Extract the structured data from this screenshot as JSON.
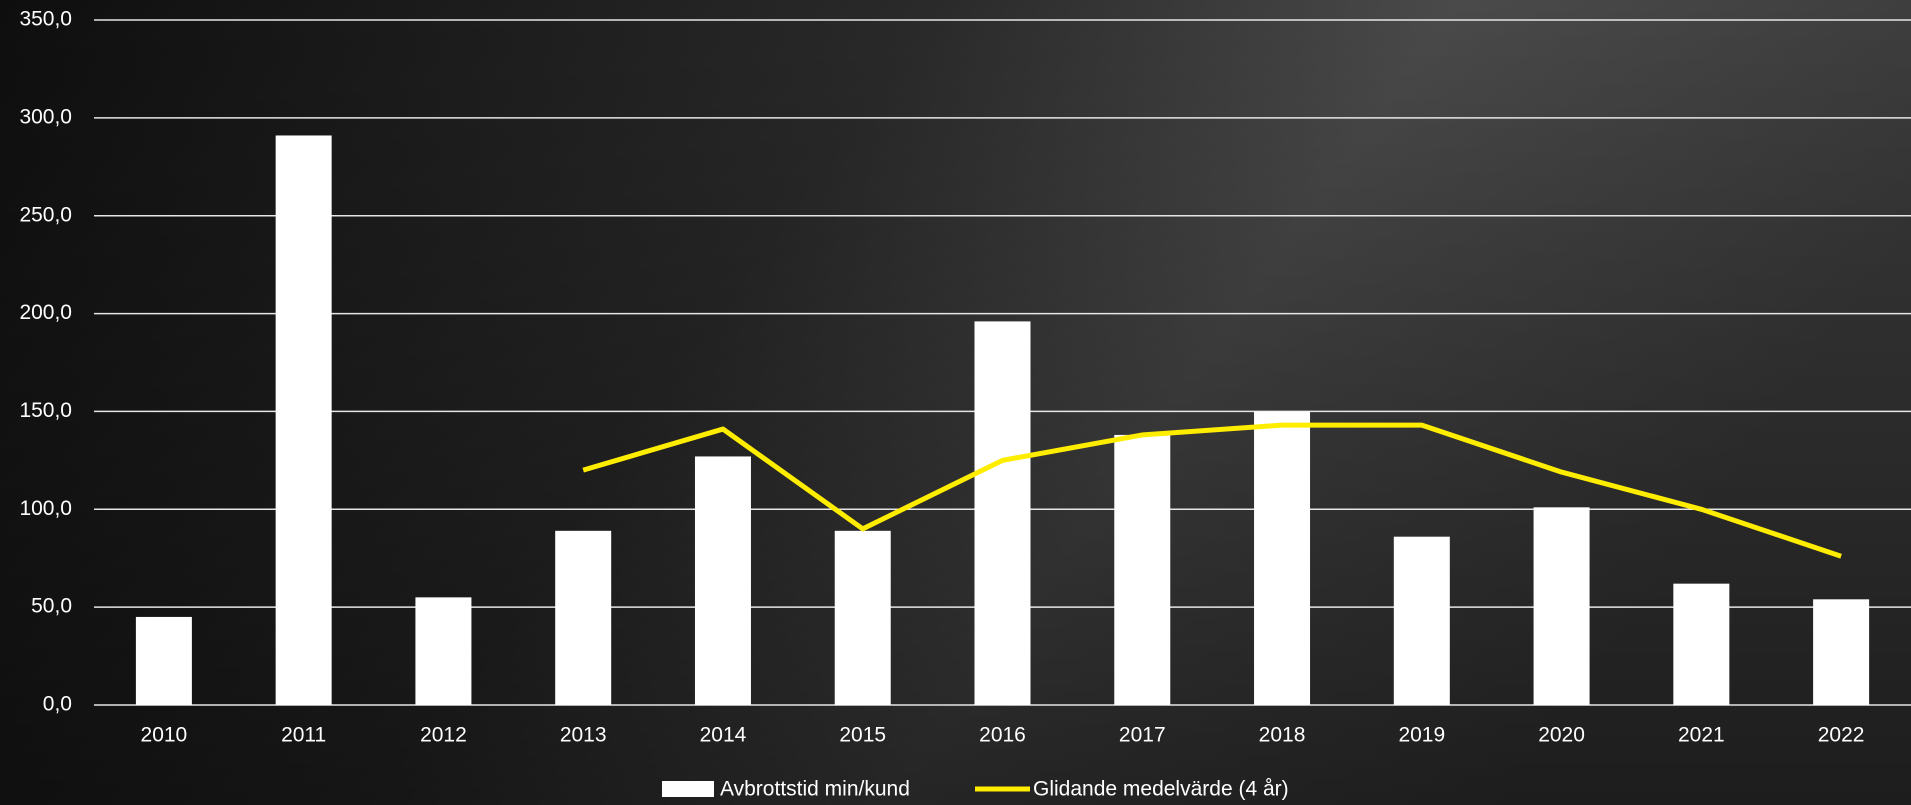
{
  "chart_data": {
    "type": "bar",
    "categories": [
      "2010",
      "2011",
      "2012",
      "2013",
      "2014",
      "2015",
      "2016",
      "2017",
      "2018",
      "2019",
      "2020",
      "2021",
      "2022"
    ],
    "series": [
      {
        "name": "Avbrottstid min/kund",
        "type": "bar",
        "color": "#ffffff",
        "values": [
          45,
          291,
          55,
          89,
          127,
          89,
          196,
          138,
          150,
          86,
          101,
          62,
          54
        ]
      },
      {
        "name": "Glidande medelvärde (4 år)",
        "type": "line",
        "color": "#ffed00",
        "values": [
          null,
          null,
          null,
          120,
          141,
          90,
          125,
          138,
          143,
          143,
          119,
          100,
          76
        ]
      }
    ],
    "ylim": [
      0,
      350
    ],
    "yticks": [
      {
        "value": 0,
        "label": "0,0"
      },
      {
        "value": 50,
        "label": "50,0"
      },
      {
        "value": 100,
        "label": "100,0"
      },
      {
        "value": 150,
        "label": "150,0"
      },
      {
        "value": 200,
        "label": "200,0"
      },
      {
        "value": 250,
        "label": "250,0"
      },
      {
        "value": 300,
        "label": "300,0"
      },
      {
        "value": 350,
        "label": "350,0"
      }
    ],
    "grid": true
  }
}
